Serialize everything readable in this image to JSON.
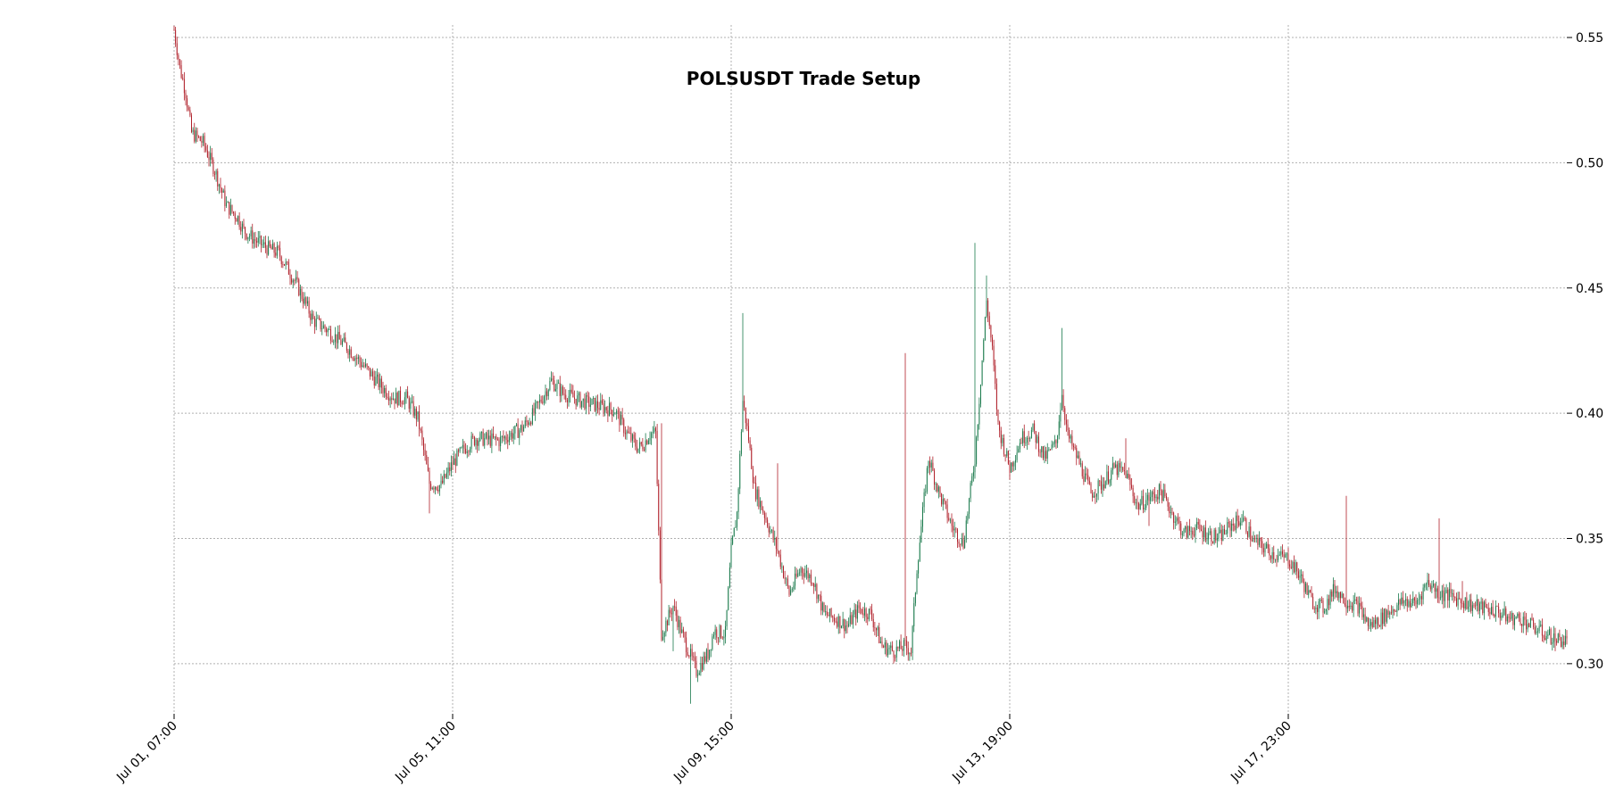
{
  "chart_data": {
    "type": "candlestick",
    "title": "POLSUSDT Trade Setup",
    "xlabel": "",
    "ylabel": "",
    "ylim": [
      0.28,
      0.555
    ],
    "y_ticks": [
      "0.30",
      "0.35",
      "0.40",
      "0.45",
      "0.50",
      "0.55"
    ],
    "x_ticks": [
      "Jul 01, 07:00",
      "Jul 05, 11:00",
      "Jul 09, 15:00",
      "Jul 13, 19:00",
      "Jul 17, 23:00"
    ],
    "x_range_hours": [
      0,
      480
    ],
    "x_tick_hours": [
      0,
      96,
      192,
      288,
      384
    ],
    "grid": true,
    "y_axis_side": "right",
    "colors": {
      "up": "#1a7a4c",
      "down": "#b0202a",
      "grid": "#b0b0b0"
    },
    "candle_interval_hours": 0.5,
    "price_path_close": [
      [
        0,
        0.553
      ],
      [
        2,
        0.538
      ],
      [
        4,
        0.528
      ],
      [
        6,
        0.512
      ],
      [
        10,
        0.508
      ],
      [
        14,
        0.497
      ],
      [
        18,
        0.483
      ],
      [
        22,
        0.478
      ],
      [
        24,
        0.473
      ],
      [
        28,
        0.469
      ],
      [
        32,
        0.466
      ],
      [
        36,
        0.464
      ],
      [
        42,
        0.452
      ],
      [
        48,
        0.437
      ],
      [
        52,
        0.434
      ],
      [
        60,
        0.426
      ],
      [
        66,
        0.418
      ],
      [
        72,
        0.41
      ],
      [
        76,
        0.406
      ],
      [
        80,
        0.406
      ],
      [
        84,
        0.398
      ],
      [
        88,
        0.372
      ],
      [
        92,
        0.371
      ],
      [
        96,
        0.38
      ],
      [
        100,
        0.386
      ],
      [
        104,
        0.39
      ],
      [
        112,
        0.389
      ],
      [
        120,
        0.394
      ],
      [
        124,
        0.4
      ],
      [
        130,
        0.413
      ],
      [
        134,
        0.408
      ],
      [
        140,
        0.405
      ],
      [
        146,
        0.403
      ],
      [
        152,
        0.401
      ],
      [
        156,
        0.392
      ],
      [
        160,
        0.386
      ],
      [
        162,
        0.388
      ],
      [
        164,
        0.392
      ],
      [
        166,
        0.392
      ],
      [
        168,
        0.312
      ],
      [
        172,
        0.323
      ],
      [
        175,
        0.312
      ],
      [
        180,
        0.297
      ],
      [
        184,
        0.304
      ],
      [
        186,
        0.313
      ],
      [
        190,
        0.312
      ],
      [
        192,
        0.345
      ],
      [
        194,
        0.36
      ],
      [
        196,
        0.405
      ],
      [
        198,
        0.39
      ],
      [
        200,
        0.37
      ],
      [
        204,
        0.358
      ],
      [
        208,
        0.345
      ],
      [
        212,
        0.328
      ],
      [
        216,
        0.338
      ],
      [
        220,
        0.334
      ],
      [
        224,
        0.32
      ],
      [
        228,
        0.318
      ],
      [
        232,
        0.315
      ],
      [
        236,
        0.322
      ],
      [
        240,
        0.32
      ],
      [
        244,
        0.307
      ],
      [
        248,
        0.305
      ],
      [
        252,
        0.307
      ],
      [
        254,
        0.305
      ],
      [
        256,
        0.338
      ],
      [
        260,
        0.382
      ],
      [
        264,
        0.367
      ],
      [
        268,
        0.355
      ],
      [
        272,
        0.348
      ],
      [
        276,
        0.382
      ],
      [
        280,
        0.445
      ],
      [
        282,
        0.425
      ],
      [
        284,
        0.395
      ],
      [
        288,
        0.378
      ],
      [
        292,
        0.39
      ],
      [
        296,
        0.393
      ],
      [
        300,
        0.382
      ],
      [
        304,
        0.388
      ],
      [
        306,
        0.408
      ],
      [
        308,
        0.391
      ],
      [
        312,
        0.38
      ],
      [
        316,
        0.368
      ],
      [
        320,
        0.372
      ],
      [
        324,
        0.378
      ],
      [
        328,
        0.376
      ],
      [
        332,
        0.363
      ],
      [
        336,
        0.366
      ],
      [
        340,
        0.369
      ],
      [
        344,
        0.36
      ],
      [
        348,
        0.352
      ],
      [
        352,
        0.354
      ],
      [
        356,
        0.352
      ],
      [
        360,
        0.35
      ],
      [
        364,
        0.355
      ],
      [
        368,
        0.358
      ],
      [
        372,
        0.349
      ],
      [
        376,
        0.346
      ],
      [
        380,
        0.343
      ],
      [
        384,
        0.342
      ],
      [
        388,
        0.335
      ],
      [
        392,
        0.325
      ],
      [
        396,
        0.322
      ],
      [
        400,
        0.33
      ],
      [
        404,
        0.325
      ],
      [
        408,
        0.323
      ],
      [
        412,
        0.315
      ],
      [
        416,
        0.318
      ],
      [
        420,
        0.322
      ],
      [
        424,
        0.325
      ],
      [
        428,
        0.324
      ],
      [
        432,
        0.333
      ],
      [
        436,
        0.328
      ],
      [
        440,
        0.327
      ],
      [
        444,
        0.325
      ],
      [
        448,
        0.323
      ],
      [
        452,
        0.322
      ],
      [
        456,
        0.321
      ],
      [
        460,
        0.318
      ],
      [
        464,
        0.318
      ],
      [
        468,
        0.315
      ],
      [
        472,
        0.312
      ],
      [
        476,
        0.31
      ],
      [
        480,
        0.309
      ]
    ],
    "wick_spikes": [
      [
        88,
        0.36
      ],
      [
        168,
        0.396
      ],
      [
        172,
        0.305
      ],
      [
        178,
        0.284
      ],
      [
        196,
        0.44
      ],
      [
        208,
        0.38
      ],
      [
        252,
        0.424
      ],
      [
        276,
        0.468
      ],
      [
        280,
        0.455
      ],
      [
        306,
        0.434
      ],
      [
        328,
        0.39
      ],
      [
        336,
        0.355
      ],
      [
        404,
        0.367
      ],
      [
        436,
        0.358
      ],
      [
        444,
        0.333
      ],
      [
        476,
        0.305
      ]
    ]
  }
}
